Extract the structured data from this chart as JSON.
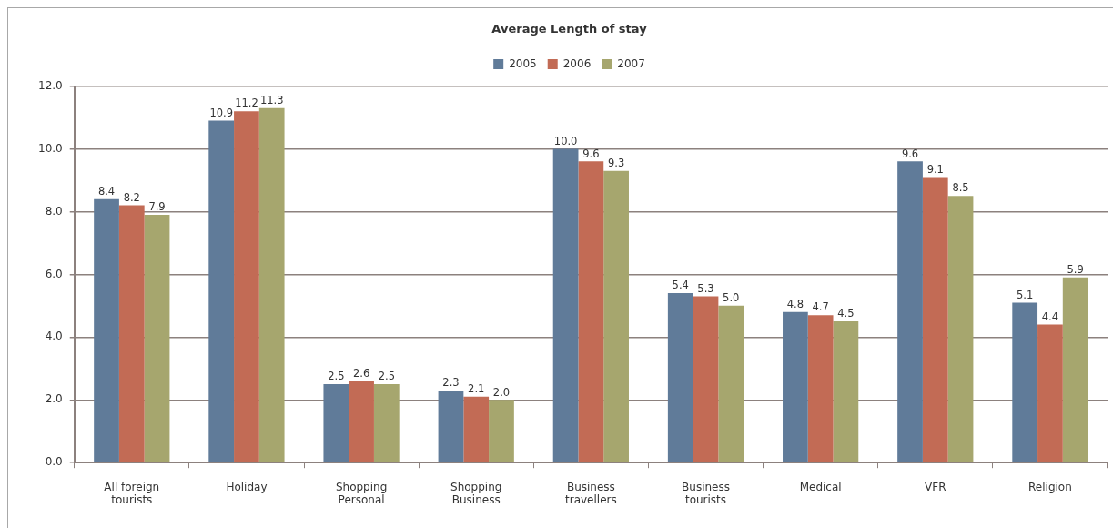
{
  "chart_data": {
    "type": "bar",
    "title": "Average Length of stay",
    "categories": [
      "All foreign tourists",
      "Holiday",
      "Shopping Personal",
      "Shopping Business",
      "Business travellers",
      "Business tourists",
      "Medical",
      "VFR",
      "Religion"
    ],
    "series": [
      {
        "name": "2005",
        "color": "#607b99",
        "values": [
          8.4,
          10.9,
          2.5,
          2.3,
          10.0,
          5.4,
          4.8,
          9.6,
          5.1
        ],
        "value_labels": [
          "8.4",
          "10.9",
          "2.5",
          "2.3",
          "10.0",
          "5.4",
          "4.8",
          "9.6",
          "5.1"
        ]
      },
      {
        "name": "2006",
        "color": "#c26b55",
        "values": [
          8.2,
          11.2,
          2.6,
          2.1,
          9.6,
          5.3,
          4.7,
          9.1,
          4.4
        ],
        "value_labels": [
          "8.2",
          "11.2",
          "2.6",
          "2.1",
          "9.6",
          "5.3",
          "4.7",
          "9.1",
          "4.4"
        ]
      },
      {
        "name": "2007",
        "color": "#a6a66e",
        "values": [
          7.9,
          11.3,
          2.5,
          2.0,
          9.3,
          5.0,
          4.5,
          8.5,
          5.9
        ],
        "value_labels": [
          "7.9",
          "11.3",
          "2.5",
          "2.0",
          "9.3",
          "5.0",
          "4.5",
          "8.5",
          "5.9"
        ]
      }
    ],
    "ylim": [
      0,
      12
    ],
    "yticks": [
      {
        "value": 0,
        "label": "0.0"
      },
      {
        "value": 2,
        "label": "2.0"
      },
      {
        "value": 4,
        "label": "4.0"
      },
      {
        "value": 6,
        "label": "6.0"
      },
      {
        "value": 8,
        "label": "8.0"
      },
      {
        "value": 10,
        "label": "10.0"
      },
      {
        "value": 12,
        "label": "12.0"
      }
    ],
    "grid": "y",
    "legend": "top"
  }
}
